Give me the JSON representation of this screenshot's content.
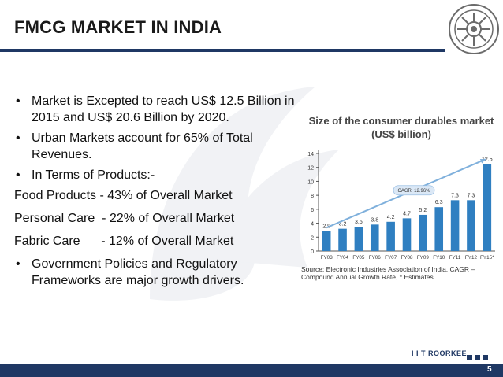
{
  "slide": {
    "title": "FMCG MARKET IN INDIA",
    "bullets_top": [
      "Market is Excepted to reach US$ 12.5 Billion in 2015 and US$ 20.6 Billion by 2020.",
      "Urban Markets account for 65% of Total Revenues.",
      "In Terms of Products:-"
    ],
    "plain_lines": [
      "Food Products - 43% of Overall Market",
      "Personal Care  - 22% of Overall Market",
      "Fabric Care      - 12% of Overall Market"
    ],
    "bullets_bottom": [
      "Government Policies and Regulatory Frameworks are major growth drivers."
    ],
    "bullet_glyph": "•",
    "footer_label": "I I T ROORKEE",
    "page_number": "5"
  },
  "chart_data": {
    "type": "bar",
    "title": "Size of the consumer durables market (US$ billion)",
    "categories": [
      "FY03",
      "FY04",
      "FY05",
      "FY06",
      "FY07",
      "FY08",
      "FY09",
      "FY10",
      "FY11",
      "FY12",
      "FY15*"
    ],
    "values": [
      2.9,
      3.2,
      3.5,
      3.8,
      4.2,
      4.7,
      5.2,
      6.3,
      7.3,
      7.3,
      12.5
    ],
    "ylim": [
      0,
      14
    ],
    "yticks": [
      0,
      2,
      4,
      6,
      8,
      10,
      12,
      14
    ],
    "annotation": "CAGR: 12.96%",
    "source": "Source: Electronic Industries Association of India, CAGR – Compound Annual Growth Rate, * Estimates",
    "grid": false,
    "bar_color": "#2f7fc1",
    "trend_color": "#7fb0dc"
  }
}
